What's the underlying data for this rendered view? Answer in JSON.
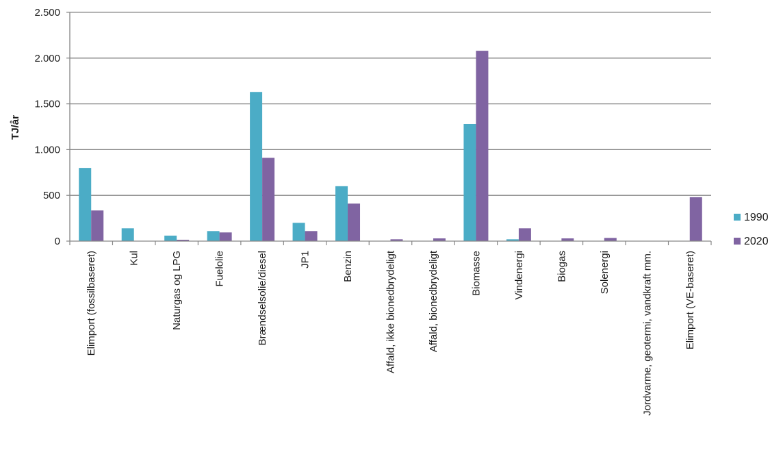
{
  "chart_data": {
    "type": "bar",
    "title": "",
    "xlabel": "",
    "ylabel": "TJ/år",
    "ylim": [
      0,
      2500
    ],
    "yticks": [
      0,
      500,
      1000,
      1500,
      2000,
      2500
    ],
    "ytick_labels": [
      "0",
      "500",
      "1.000",
      "1.500",
      "2.000",
      "2.500"
    ],
    "grid": true,
    "legend_position": "right",
    "categories": [
      "Elimport (fossilbaseret)",
      "Kul",
      "Naturgas og LPG",
      "Fuelolie",
      "Brændselsolie/diesel",
      "JP1",
      "Benzin",
      "Affald, ikke bionedbrydeligt",
      "Affald, bionedbrydeligt",
      "Biomasse",
      "Vindenergi",
      "Biogas",
      "Solenergi",
      "Jordvarme, geotermi, vandkraft mm.",
      "Elimport (VE-baseret)"
    ],
    "series": [
      {
        "name": "1990",
        "color": "#4bacc6",
        "values": [
          800,
          140,
          60,
          110,
          1630,
          200,
          600,
          0,
          0,
          1280,
          20,
          0,
          0,
          0,
          0
        ]
      },
      {
        "name": "2020",
        "color": "#8064a2",
        "values": [
          335,
          0,
          15,
          95,
          910,
          110,
          410,
          20,
          30,
          2080,
          140,
          30,
          35,
          0,
          480
        ]
      }
    ]
  }
}
